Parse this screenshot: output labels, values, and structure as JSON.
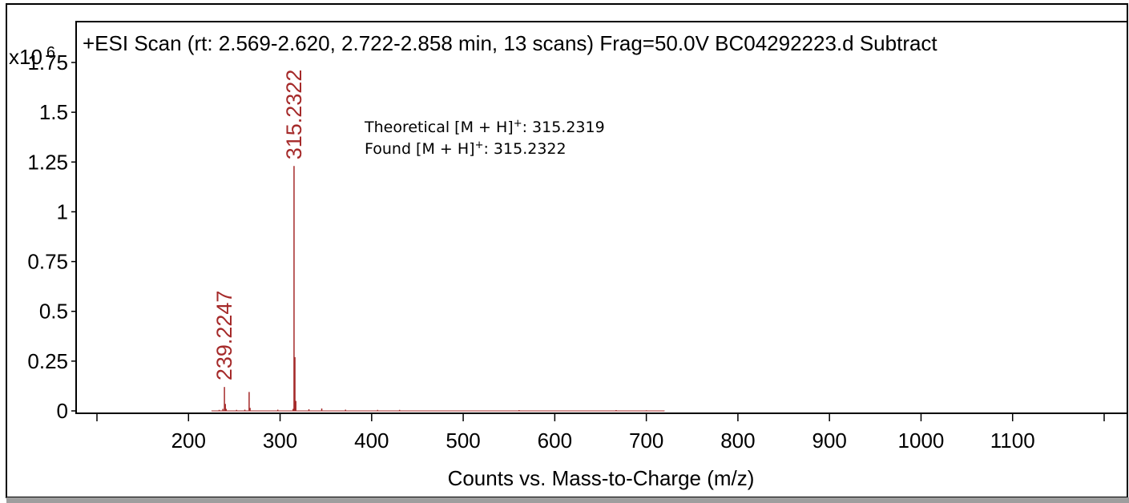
{
  "chart_data": {
    "type": "line",
    "title": "+ESI Scan (rt: 2.569-2.620, 2.722-2.858 min, 13 scans) Frag=50.0V BC04292223.d  Subtract",
    "xlabel": "Counts vs. Mass-to-Charge (m/z)",
    "ylabel": "",
    "y_multiplier_label": "x10",
    "y_multiplier_exponent": "6",
    "xlim": [
      100,
      1200
    ],
    "ylim": [
      0,
      1.9
    ],
    "x_ticks": [
      200,
      300,
      400,
      500,
      600,
      700,
      800,
      900,
      1000,
      1100
    ],
    "x_tick_labels": [
      "200",
      "300",
      "400",
      "500",
      "600",
      "700",
      "800",
      "900",
      "1000",
      "1100"
    ],
    "y_ticks": [
      0,
      0.25,
      0.5,
      0.75,
      1,
      1.25,
      1.5,
      1.75
    ],
    "y_tick_labels": [
      "0",
      "0.25",
      "0.5",
      "0.75",
      "1",
      "1.25",
      "1.5",
      "1.75"
    ],
    "grid": false,
    "series": [
      {
        "color": "#a52a2a",
        "x": [
          233.5,
          237.5,
          239.2247,
          240.2,
          241.2,
          252.5,
          261.5,
          266.2,
          267.2,
          297.5,
          314.2,
          315.2322,
          316.2,
          317.2,
          331.5,
          345.5,
          371.5,
          406.5,
          430.5,
          561.0,
          667.0,
          700.0
        ],
        "values": [
          0.005,
          0.01,
          0.12,
          0.035,
          0.01,
          0.005,
          0.006,
          0.095,
          0.015,
          0.006,
          0.01,
          1.23,
          0.27,
          0.05,
          0.008,
          0.012,
          0.006,
          0.005,
          0.005,
          0.004,
          0.004,
          0.003
        ]
      }
    ],
    "peak_labels": [
      "239.2247",
      "315.2322"
    ],
    "peak_label_x": [
      239.2247,
      315.2322
    ],
    "peak_label_y": [
      0.12,
      1.23
    ],
    "annotations": {
      "theoretical_prefix": "Theoretical [M + H]",
      "found_prefix": "Found [M + H]",
      "charge": "+",
      "theoretical_value": ": 315.2319",
      "found_value": ": 315.2322"
    }
  }
}
